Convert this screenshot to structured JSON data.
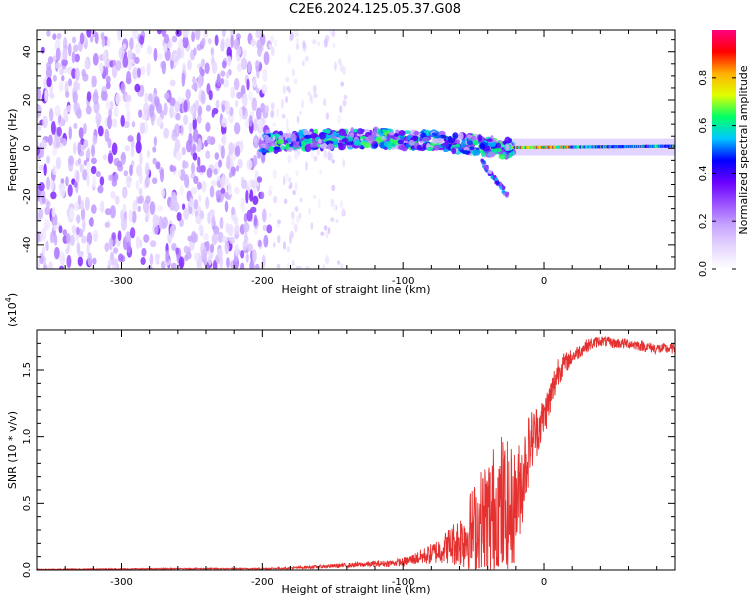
{
  "title": "C2E6.2024.125.05.37.G08",
  "colors": {
    "snr_line": "#e53030",
    "colormap": [
      "#ffffff",
      "#e6d7ff",
      "#c7a6ff",
      "#9a52ff",
      "#6a00ff",
      "#0000ff",
      "#00c8ff",
      "#00ff66",
      "#e0ff00",
      "#ffb000",
      "#ff0000",
      "#ff0080"
    ]
  },
  "chart_data": [
    {
      "type": "heatmap",
      "xlabel": "Height of straight line (km)",
      "ylabel": "Frequency (Hz)",
      "xlim": [
        -360,
        93
      ],
      "ylim": [
        -50,
        49
      ],
      "xticks": [
        -300,
        -200,
        -100,
        0
      ],
      "yticks": [
        -40,
        -20,
        0,
        20,
        40
      ],
      "colorbar": {
        "label": "Normalized spectral amplitude",
        "range": [
          0,
          1
        ],
        "ticks": [
          "0.0",
          "0.2",
          "0.4",
          "0.6",
          "0.8"
        ],
        "tick_values": [
          0.0,
          0.2,
          0.4,
          0.6,
          0.8
        ]
      },
      "features": [
        {
          "x": [
            -360,
            -195
          ],
          "y": [
            -50,
            49
          ],
          "kind": "noise",
          "max_amplitude": 0.3
        },
        {
          "x": [
            -195,
            -140
          ],
          "y": [
            -50,
            49
          ],
          "kind": "sparse noise",
          "max_amplitude": 0.1
        },
        {
          "x": [
            -200,
            -22
          ],
          "y": [
            -1,
            6
          ],
          "kind": "main trace",
          "max_amplitude": 0.55
        },
        {
          "x": [
            -45,
            -25
          ],
          "y": [
            -20,
            -5
          ],
          "kind": "branch",
          "max_amplitude": 0.4
        },
        {
          "x": [
            -22,
            93
          ],
          "y": [
            -1,
            2
          ],
          "kind": "steady trace",
          "max_amplitude": 1.0
        }
      ]
    },
    {
      "type": "line",
      "xlabel": "Height of straight line (km)",
      "ylabel": "SNR (10 * v/v)",
      "multiplier": "(x10^4)",
      "multiplier_base": "(x10",
      "multiplier_exp": "4",
      "xlim": [
        -360,
        93
      ],
      "ylim": [
        0,
        1.8
      ],
      "xticks": [
        -300,
        -200,
        -100,
        0
      ],
      "yticks": [
        "0.0",
        "0.5",
        "1.0",
        "1.5"
      ],
      "ytick_values": [
        0.0,
        0.5,
        1.0,
        1.5
      ],
      "series": [
        {
          "x": [
            -360,
            -300,
            -250,
            -200,
            -180,
            -150,
            -130,
            -110,
            -100,
            -90,
            -80,
            -70,
            -60,
            -50,
            -40,
            -30,
            -25,
            -20,
            -15,
            -10,
            -5,
            0,
            5,
            10,
            15,
            20,
            30,
            40,
            50,
            60,
            70,
            80,
            93
          ],
          "values": [
            0.005,
            0.008,
            0.01,
            0.01,
            0.015,
            0.03,
            0.04,
            0.05,
            0.06,
            0.09,
            0.12,
            0.17,
            0.22,
            0.3,
            0.38,
            0.45,
            0.4,
            0.5,
            0.7,
            0.95,
            1.05,
            1.15,
            1.3,
            1.5,
            1.55,
            1.6,
            1.68,
            1.72,
            1.7,
            1.7,
            1.68,
            1.66,
            1.66
          ],
          "noise_amplitude": [
            0.003,
            0.004,
            0.004,
            0.005,
            0.008,
            0.015,
            0.02,
            0.025,
            0.03,
            0.05,
            0.08,
            0.12,
            0.2,
            0.35,
            0.5,
            0.6,
            0.55,
            0.4,
            0.35,
            0.25,
            0.2,
            0.15,
            0.15,
            0.12,
            0.08,
            0.06,
            0.05,
            0.04,
            0.04,
            0.04,
            0.04,
            0.04,
            0.04
          ]
        }
      ]
    }
  ]
}
